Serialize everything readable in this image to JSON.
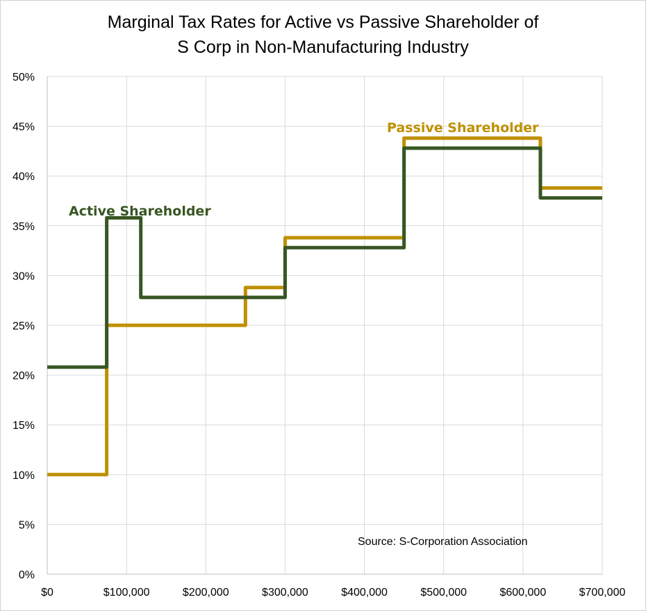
{
  "chart_data": {
    "type": "line",
    "step": true,
    "title": [
      "Marginal Tax Rates for Active vs Passive Shareholder of",
      "S Corp in Non-Manufacturing Industry"
    ],
    "xlabel": "",
    "ylabel": "",
    "xlim": [
      0,
      700000
    ],
    "ylim": [
      0,
      50
    ],
    "grid": true,
    "x_ticks": [
      "$0",
      "$100,000",
      "$200,000",
      "$300,000",
      "$400,000",
      "$500,000",
      "$600,000",
      "$700,000"
    ],
    "y_ticks": [
      "0%",
      "5%",
      "10%",
      "15%",
      "20%",
      "25%",
      "30%",
      "35%",
      "40%",
      "45%",
      "50%"
    ],
    "series": [
      {
        "name": "Passive Shareholder",
        "color": "#bf9000",
        "x": [
          0,
          75000,
          250000,
          300000,
          450000,
          622000,
          700000
        ],
        "values": [
          10,
          25,
          28.8,
          33.8,
          43.8,
          38.8,
          38.8
        ]
      },
      {
        "name": "Active Shareholder",
        "color": "#375623",
        "x": [
          0,
          75000,
          118000,
          300000,
          450000,
          622000,
          700000
        ],
        "values": [
          20.8,
          35.8,
          27.8,
          32.8,
          42.8,
          37.8,
          37.8
        ]
      }
    ],
    "annotations": [
      "Source: S-Corporation Association"
    ]
  }
}
